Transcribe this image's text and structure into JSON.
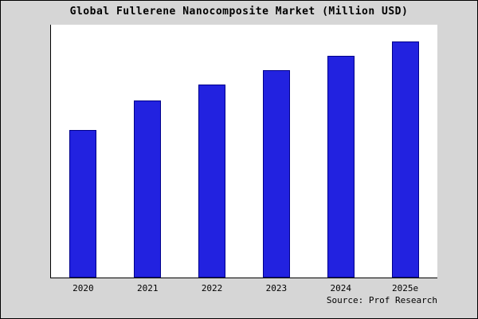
{
  "title": "Global Fullerene Nanocomposite Market (Million USD)",
  "source": "Source: Prof Research",
  "colors": {
    "bar_fill": "#2222e0",
    "bar_edge": "#00008b",
    "page_background": "#d6d6d6",
    "plot_background": "#ffffff",
    "axis": "#000000",
    "text": "#000000"
  },
  "chart_data": {
    "type": "bar",
    "title": "Global Fullerene Nanocomposite Market (Million USD)",
    "categories": [
      "2020",
      "2021",
      "2022",
      "2023",
      "2024",
      "2025e"
    ],
    "values": [
      185,
      222,
      242,
      260,
      278,
      296
    ],
    "xlabel": "",
    "ylabel": "",
    "ylim": [
      0,
      317
    ],
    "grid": false,
    "legend": false,
    "y_axis_tick_labels_visible": false,
    "source_label": "Source: Prof Research"
  }
}
